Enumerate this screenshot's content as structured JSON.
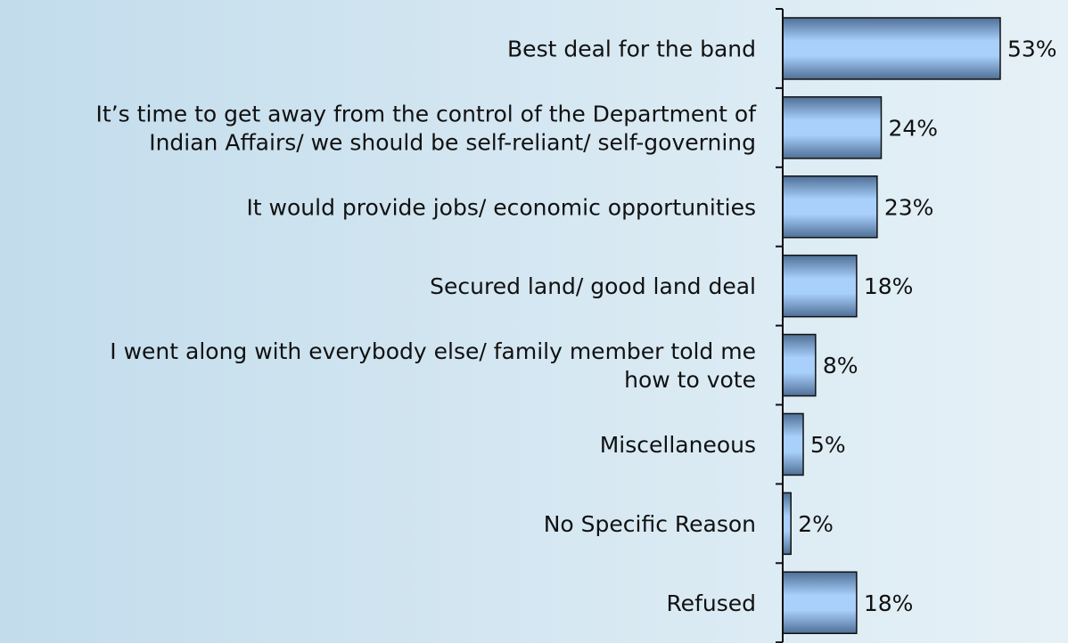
{
  "chart_data": {
    "type": "bar",
    "orientation": "horizontal",
    "categories": [
      [
        "Best deal for the band"
      ],
      [
        "It’s time to get away from the control of the Department of",
        "Indian Affairs/ we should be self-reliant/ self-governing"
      ],
      [
        "It would provide jobs/ economic opportunities"
      ],
      [
        "Secured land/ good land deal"
      ],
      [
        "I went along with everybody else/ family member told me",
        "how to vote"
      ],
      [
        "Miscellaneous"
      ],
      [
        "No Specific Reason"
      ],
      [
        "Refused"
      ]
    ],
    "values": [
      53,
      24,
      23,
      18,
      8,
      5,
      2,
      18
    ],
    "value_labels": [
      "53%",
      "24%",
      "23%",
      "18%",
      "8%",
      "5%",
      "2%",
      "18%"
    ],
    "xlim": [
      0,
      53
    ],
    "grid": false,
    "legend": "none",
    "colors": {
      "bar_fill_dark": "#5b7faa",
      "bar_fill_light": "#a9d2ff",
      "bar_stroke": "#111111",
      "axis": "#111111"
    }
  }
}
